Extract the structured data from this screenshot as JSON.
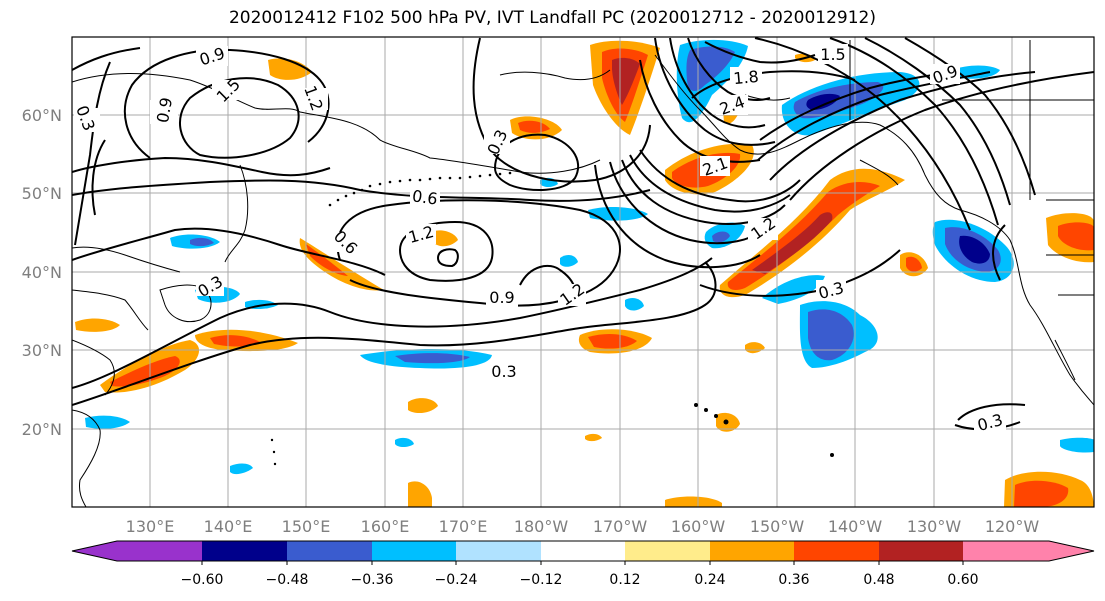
{
  "title": "2020012412 F102 500 hPa PV, IVT Landfall PC (2020012712 - 2020012912)",
  "map": {
    "lat_labels": [
      "60°N",
      "50°N",
      "40°N",
      "30°N",
      "20°N"
    ],
    "lon_labels": [
      "130°E",
      "140°E",
      "150°E",
      "160°E",
      "170°E",
      "180°W",
      "170°W",
      "160°W",
      "150°W",
      "140°W",
      "130°W",
      "120°W"
    ],
    "contour_labels": [
      "0.9",
      "1.5",
      "1.2",
      "0.9",
      "0.3",
      "0.3",
      "0.6",
      "0.6",
      "1.2",
      "0.9",
      "1.2",
      "0.3",
      "1.5",
      "1.8",
      "2.4",
      "2.1",
      "1.2",
      "0.3",
      "0.9",
      "0.3",
      "0.3"
    ]
  },
  "colorbar": {
    "colors": [
      "#9932cc",
      "#00008b",
      "#3a5ccf",
      "#00bfff",
      "#b0e2ff",
      "#ffffff",
      "#ffec8b",
      "#ffa500",
      "#ff4500",
      "#b22222",
      "#ff82ab"
    ],
    "tick_labels": [
      "−0.60",
      "−0.48",
      "−0.36",
      "−0.24",
      "−0.12",
      "0.12",
      "0.24",
      "0.36",
      "0.48",
      "0.60"
    ]
  }
}
